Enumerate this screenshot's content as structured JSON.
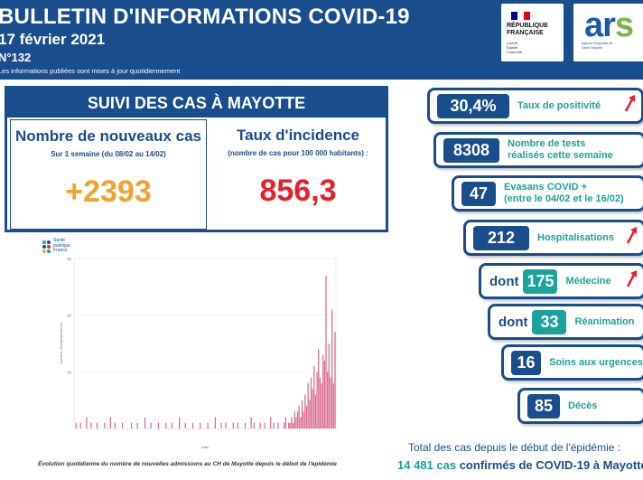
{
  "header": {
    "title": "BULLETIN D'INFORMATIONS COVID-19",
    "date": "17 février 2021",
    "number": "N°132",
    "note": "Les informations publiées sont mises à jour quotidiennement"
  },
  "logos": {
    "rf_line1": "RÉPUBLIQUE",
    "rf_line2": "FRANÇAISE",
    "rf_motto1": "Liberté",
    "rf_motto2": "Égalité",
    "rf_motto3": "Fraternité",
    "ars_word": "ar",
    "ars_s": "s",
    "ars_sub": "Agence Régionale de Santé Mayotte",
    "sp_line1": "Santé",
    "sp_line2": "publique",
    "sp_line3": "France"
  },
  "suivi": {
    "title": "SUIVI DES CAS À MAYOTTE",
    "cas_title": "Nombre de nouveaux cas",
    "cas_period": "Sur 1 semaine (du 08/02 au 14/02)",
    "cas_value": "+2393",
    "incidence_title": "Taux d'incidence",
    "incidence_sub": "(nombre de cas pour 100 000 habitants) :",
    "incidence_value": "856,3"
  },
  "indicators": {
    "positivite": {
      "value": "30,4%",
      "label": "Taux de positivité"
    },
    "tests": {
      "value": "8308",
      "label_line1": "Nombre de tests",
      "label_line2": "réalisés cette semaine"
    },
    "evasans": {
      "value": "47",
      "label_line1": "Evasans COVID +",
      "label_line2": "(entre le 04/02 et le 16/02)"
    },
    "hospitalisations": {
      "value": "212",
      "label": "Hospitalisations"
    },
    "medecine": {
      "prefix": "dont",
      "value": "175",
      "label": "Médecine"
    },
    "reanimation": {
      "prefix": "dont",
      "value": "33",
      "label": "Réanimation"
    },
    "soins_urgence": {
      "value": "16",
      "label": "Soins aux urgences"
    },
    "deces": {
      "value": "85",
      "label": "Décès"
    }
  },
  "totals": {
    "line1": "Total des cas depuis le début de l'épidémie :",
    "count": "14 481 cas",
    "line2": "confirmés de COVID-19 à Mayotte"
  },
  "chart_caption": "Évolution quotidienne du nombre de nouvelles admissions au CH de Mayotte depuis le début de l'épidémie",
  "colors": {
    "brand_blue": "#1a4d8c",
    "teal": "#1aa39a",
    "orange": "#f2a230",
    "red": "#e8202a",
    "bar": "#d96b8c"
  },
  "chart_data": {
    "type": "bar",
    "title": "",
    "xlabel": "Date",
    "ylabel": "Nombre d'hospitalisations",
    "ylim": [
      0,
      30
    ],
    "yticks": [
      10,
      20,
      30
    ],
    "series": [
      {
        "values": [
          0,
          1,
          0,
          0,
          1,
          0,
          0,
          0,
          2,
          0,
          0,
          1,
          0,
          0,
          0,
          1,
          0,
          0,
          0,
          0,
          1,
          0,
          0,
          0,
          2,
          0,
          0,
          1,
          0,
          0,
          0,
          0,
          1,
          0,
          0,
          0,
          0,
          0,
          1,
          0,
          0,
          0,
          1,
          0,
          0,
          0,
          0,
          2,
          0,
          0,
          0,
          1,
          0,
          0,
          0,
          0,
          1,
          0,
          0,
          0,
          0,
          1,
          0,
          0,
          0,
          1,
          0,
          0,
          0,
          0,
          2,
          0,
          0,
          0,
          1,
          0,
          0,
          0,
          0,
          1,
          0,
          0,
          0,
          0,
          1,
          0,
          0,
          0,
          0,
          1,
          0,
          0,
          0,
          0,
          2,
          0,
          0,
          0,
          1,
          0,
          0,
          1,
          0,
          0,
          0,
          0,
          1,
          0,
          0,
          1,
          0,
          0,
          0,
          0,
          1,
          0,
          0,
          0,
          2,
          0,
          1,
          0,
          0,
          0,
          1,
          0,
          0,
          1,
          0,
          0,
          0,
          2,
          0,
          1,
          0,
          0,
          1,
          0,
          0,
          0,
          1,
          2,
          0,
          1,
          1,
          2,
          1,
          3,
          2,
          3,
          4,
          2,
          5,
          3,
          6,
          4,
          8,
          5,
          9,
          7,
          11,
          6,
          10,
          14,
          9,
          8,
          13,
          12,
          27,
          10,
          15,
          9,
          21,
          8,
          17
        ]
      }
    ]
  }
}
